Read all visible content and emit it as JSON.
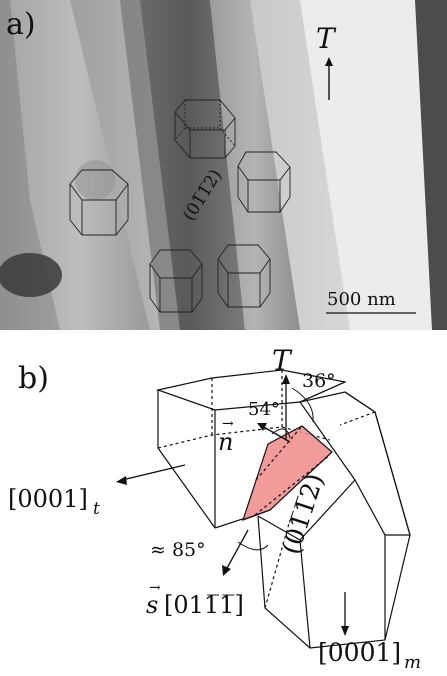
{
  "panel_a": {
    "label": "a)",
    "direction_label": "T",
    "scale_bar_label": "500 nm",
    "plane_label": "(01̅1̅2)"
  },
  "panel_b": {
    "label": "b)",
    "T_label": "T",
    "angle_36": "36°",
    "angle_54": "54°",
    "n_label": "n",
    "axis_t_label": "[0001]",
    "axis_t_sub": "t",
    "plane_label": "(01̅1̅2)",
    "angle_85": "≈ 85°",
    "s_label": "s",
    "s_index": "[011̅1̅]",
    "axis_m_label": "[0001]",
    "axis_m_sub": "m",
    "plane_color": "#f08a8a"
  }
}
